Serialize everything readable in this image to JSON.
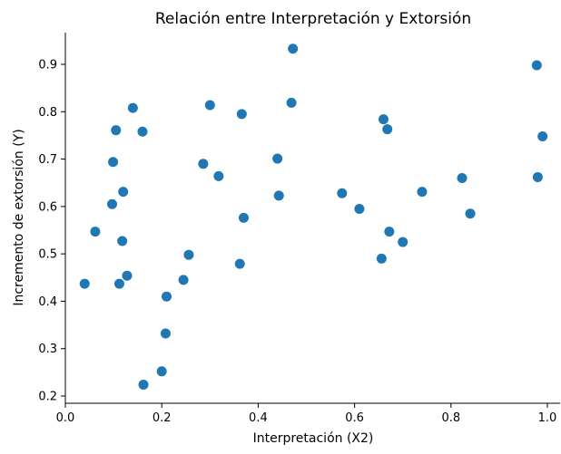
{
  "chart_data": {
    "type": "scatter",
    "title": "Relación entre Interpretación y Extorsión",
    "xlabel": "Interpretación (X2)",
    "ylabel": "Incremento de extorsión (Y)",
    "xlim": [
      0.0,
      1.0
    ],
    "ylim": [
      0.2,
      0.9
    ],
    "xticks": [
      "0.0",
      "0.2",
      "0.4",
      "0.6",
      "0.8",
      "1.0"
    ],
    "yticks": [
      "0.2",
      "0.3",
      "0.4",
      "0.5",
      "0.6",
      "0.7",
      "0.8",
      "0.9"
    ],
    "grid": false,
    "marker_color": "#1f77b4",
    "series": [
      {
        "points": [
          [
            0.04,
            0.437
          ],
          [
            0.062,
            0.547
          ],
          [
            0.097,
            0.605
          ],
          [
            0.099,
            0.694
          ],
          [
            0.105,
            0.761
          ],
          [
            0.112,
            0.437
          ],
          [
            0.118,
            0.527
          ],
          [
            0.12,
            0.631
          ],
          [
            0.128,
            0.454
          ],
          [
            0.14,
            0.808
          ],
          [
            0.16,
            0.758
          ],
          [
            0.162,
            0.224
          ],
          [
            0.2,
            0.252
          ],
          [
            0.208,
            0.332
          ],
          [
            0.21,
            0.41
          ],
          [
            0.245,
            0.445
          ],
          [
            0.256,
            0.498
          ],
          [
            0.286,
            0.69
          ],
          [
            0.3,
            0.814
          ],
          [
            0.318,
            0.664
          ],
          [
            0.362,
            0.479
          ],
          [
            0.366,
            0.795
          ],
          [
            0.37,
            0.576
          ],
          [
            0.44,
            0.701
          ],
          [
            0.443,
            0.623
          ],
          [
            0.469,
            0.819
          ],
          [
            0.472,
            0.933
          ],
          [
            0.574,
            0.628
          ],
          [
            0.61,
            0.595
          ],
          [
            0.656,
            0.49
          ],
          [
            0.66,
            0.784
          ],
          [
            0.668,
            0.763
          ],
          [
            0.672,
            0.547
          ],
          [
            0.7,
            0.525
          ],
          [
            0.74,
            0.631
          ],
          [
            0.823,
            0.66
          ],
          [
            0.84,
            0.585
          ],
          [
            0.978,
            0.898
          ],
          [
            0.98,
            0.662
          ],
          [
            0.99,
            0.748
          ]
        ]
      }
    ]
  }
}
